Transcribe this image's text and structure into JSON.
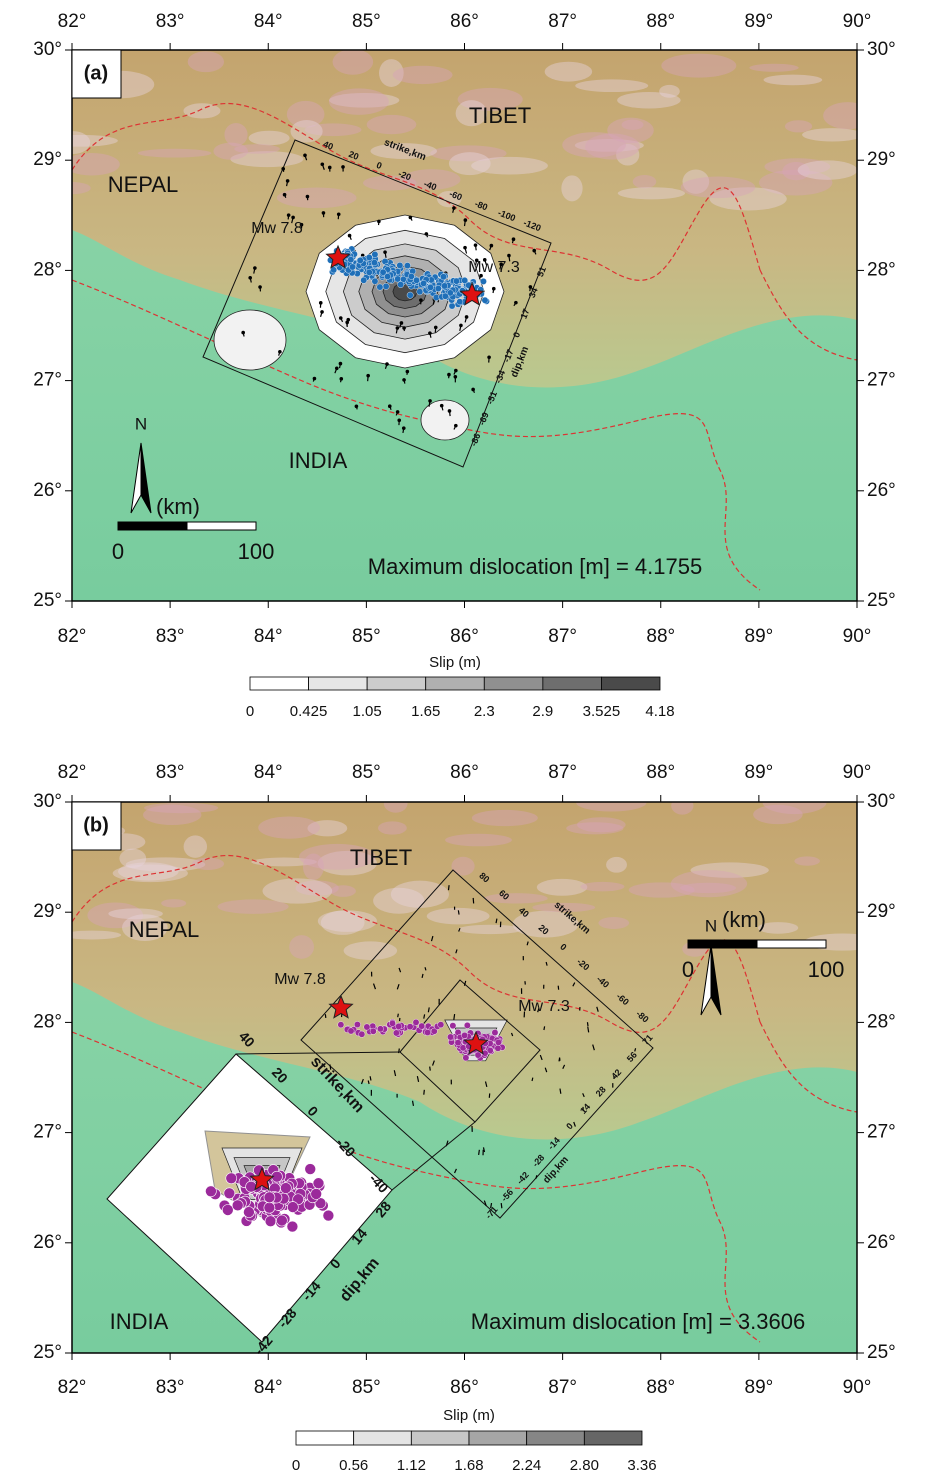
{
  "panels": [
    {
      "label": "(a)",
      "lon_ticks": [
        "82°",
        "83°",
        "84°",
        "85°",
        "86°",
        "87°",
        "88°",
        "89°",
        "90°"
      ],
      "lat_ticks": [
        "30°",
        "29°",
        "28°",
        "27°",
        "26°",
        "25°"
      ],
      "places": [
        "TIBET",
        "NEPAL",
        "INDIA"
      ],
      "events": [
        "Mw 7.8",
        "Mw 7.3"
      ],
      "max_dislocation": "Maximum dislocation [m] = 4.1755",
      "north": "N",
      "scale_unit": "(km)",
      "scale_labels": [
        "0",
        "100"
      ],
      "strike_title": "strike,km",
      "strike_ticks": [
        "40",
        "20",
        "0",
        "-20",
        "-40",
        "-60",
        "-80",
        "-100",
        "-120"
      ],
      "dip_title": "dip,km",
      "dip_ticks": [
        "51",
        "34",
        "17",
        "0",
        "-17",
        "-34",
        "-51",
        "-69",
        "-86"
      ],
      "colorbar": {
        "title": "Slip (m)",
        "ticks": [
          "0",
          "0.425",
          "1.05",
          "1.65",
          "2.3",
          "2.9",
          "3.525",
          "4.18"
        ],
        "colors": [
          "#ffffff",
          "#e6e6e6",
          "#cccccc",
          "#b0b0b0",
          "#909090",
          "#6e6e6e",
          "#4a4a4a"
        ]
      }
    },
    {
      "label": "(b)",
      "lon_ticks": [
        "82°",
        "83°",
        "84°",
        "85°",
        "86°",
        "87°",
        "88°",
        "89°",
        "90°"
      ],
      "lat_ticks": [
        "30°",
        "29°",
        "28°",
        "27°",
        "26°",
        "25°"
      ],
      "places": [
        "TIBET",
        "NEPAL",
        "INDIA"
      ],
      "events": [
        "Mw 7.8",
        "Mw 7.3"
      ],
      "max_dislocation": "Maximum dislocation [m] = 3.3606",
      "north": "N",
      "scale_unit": "(km)",
      "scale_labels": [
        "0",
        "100"
      ],
      "strike_title": "strike,km",
      "strike_ticks": [
        "80",
        "60",
        "40",
        "20",
        "0",
        "-20",
        "-40",
        "-60",
        "-80"
      ],
      "dip_title": "dip,km",
      "dip_ticks": [
        "-71",
        "-56",
        "-42",
        "-28",
        "-14",
        "0",
        "14",
        "28",
        "42",
        "56",
        "71"
      ],
      "inset": {
        "strike_title": "strike,km",
        "strike_ticks": [
          "40",
          "20",
          "0",
          "-20",
          "-40"
        ],
        "dip_title": "dip,km",
        "dip_ticks": [
          "28",
          "14",
          "0",
          "-14",
          "-28",
          "-42"
        ]
      },
      "colorbar": {
        "title": "Slip (m)",
        "ticks": [
          "0",
          "0.56",
          "1.12",
          "1.68",
          "2.24",
          "2.80",
          "3.36"
        ],
        "colors": [
          "#ffffff",
          "#e4e4e4",
          "#c6c6c6",
          "#a6a6a6",
          "#868686",
          "#666666"
        ]
      }
    }
  ]
}
